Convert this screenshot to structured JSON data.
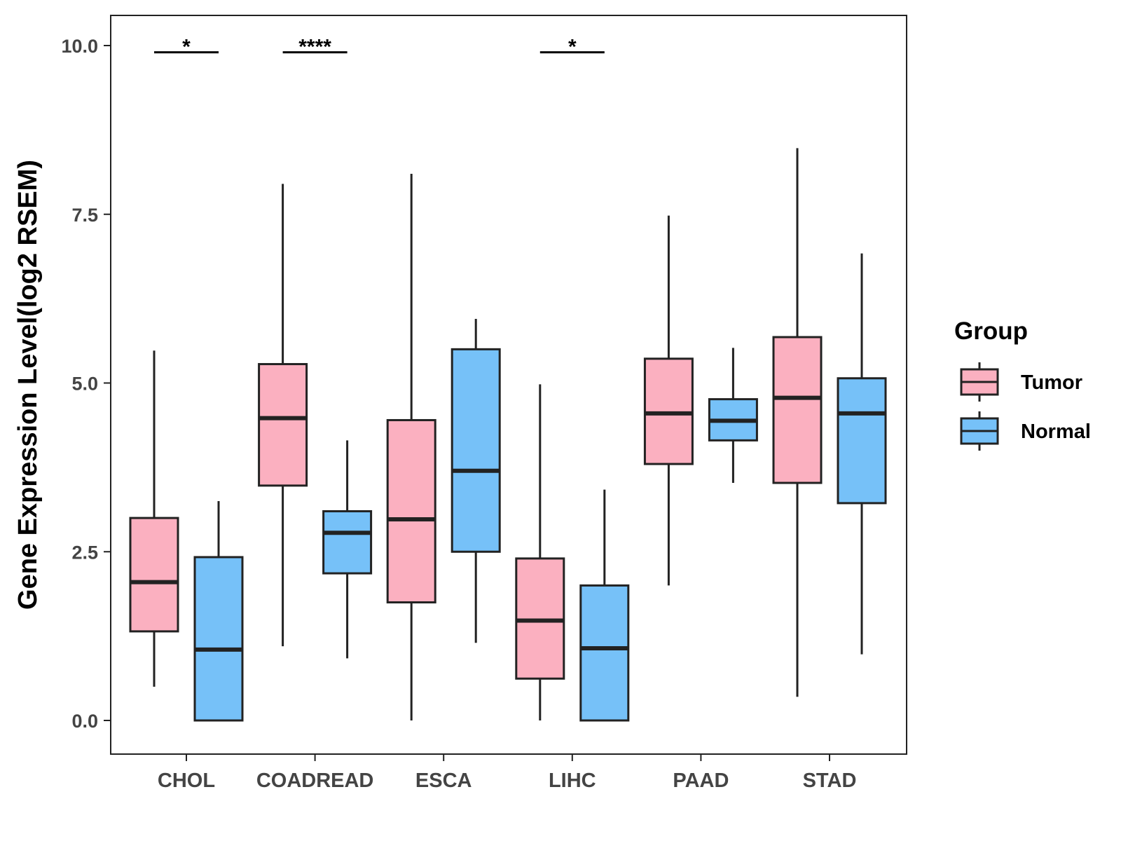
{
  "chart_data": {
    "type": "boxplot",
    "title": "",
    "xlabel": "",
    "ylabel": "Gene Expression Level(log2 RSEM)",
    "ylim": [
      -0.5,
      10.45
    ],
    "yticks": [
      {
        "value": 0.0,
        "label": "0.0"
      },
      {
        "value": 2.5,
        "label": "2.5"
      },
      {
        "value": 5.0,
        "label": "5.0"
      },
      {
        "value": 7.5,
        "label": "7.5"
      },
      {
        "value": 10.0,
        "label": "10.0"
      }
    ],
    "categories": [
      "CHOL",
      "COADREAD",
      "ESCA",
      "LIHC",
      "PAAD",
      "STAD"
    ],
    "legend": {
      "title": "Group",
      "position": "right",
      "items": [
        {
          "name": "Tumor",
          "color": "#FBB0C0"
        },
        {
          "name": "Normal",
          "color": "#76C1F8"
        }
      ]
    },
    "series": [
      {
        "name": "Tumor",
        "color": "#FBB0C0",
        "boxes": [
          {
            "category": "CHOL",
            "min": 0.5,
            "q1": 1.32,
            "median": 2.05,
            "q3": 3.0,
            "max": 5.48
          },
          {
            "category": "COADREAD",
            "min": 1.1,
            "q1": 3.48,
            "median": 4.48,
            "q3": 5.28,
            "max": 7.95
          },
          {
            "category": "ESCA",
            "min": 0.0,
            "q1": 1.75,
            "median": 2.98,
            "q3": 4.45,
            "max": 8.1
          },
          {
            "category": "LIHC",
            "min": 0.0,
            "q1": 0.62,
            "median": 1.48,
            "q3": 2.4,
            "max": 4.98
          },
          {
            "category": "PAAD",
            "min": 2.0,
            "q1": 3.8,
            "median": 4.55,
            "q3": 5.36,
            "max": 7.48
          },
          {
            "category": "STAD",
            "min": 0.35,
            "q1": 3.52,
            "median": 4.78,
            "q3": 5.68,
            "max": 8.48
          }
        ]
      },
      {
        "name": "Normal",
        "color": "#76C1F8",
        "boxes": [
          {
            "category": "CHOL",
            "min": 0.0,
            "q1": 0.0,
            "median": 1.05,
            "q3": 2.42,
            "max": 3.25
          },
          {
            "category": "COADREAD",
            "min": 0.92,
            "q1": 2.18,
            "median": 2.78,
            "q3": 3.1,
            "max": 4.15
          },
          {
            "category": "ESCA",
            "min": 1.15,
            "q1": 2.5,
            "median": 3.7,
            "q3": 5.5,
            "max": 5.95
          },
          {
            "category": "LIHC",
            "min": 0.0,
            "q1": 0.0,
            "median": 1.07,
            "q3": 2.0,
            "max": 3.42
          },
          {
            "category": "PAAD",
            "min": 3.52,
            "q1": 4.15,
            "median": 4.44,
            "q3": 4.76,
            "max": 5.52
          },
          {
            "category": "STAD",
            "min": 0.98,
            "q1": 3.22,
            "median": 4.55,
            "q3": 5.07,
            "max": 6.92
          }
        ]
      }
    ],
    "annotations": [
      {
        "category": "CHOL",
        "label": "*",
        "y": 9.9
      },
      {
        "category": "COADREAD",
        "label": "****",
        "y": 9.9
      },
      {
        "category": "LIHC",
        "label": "*",
        "y": 9.9
      }
    ]
  }
}
